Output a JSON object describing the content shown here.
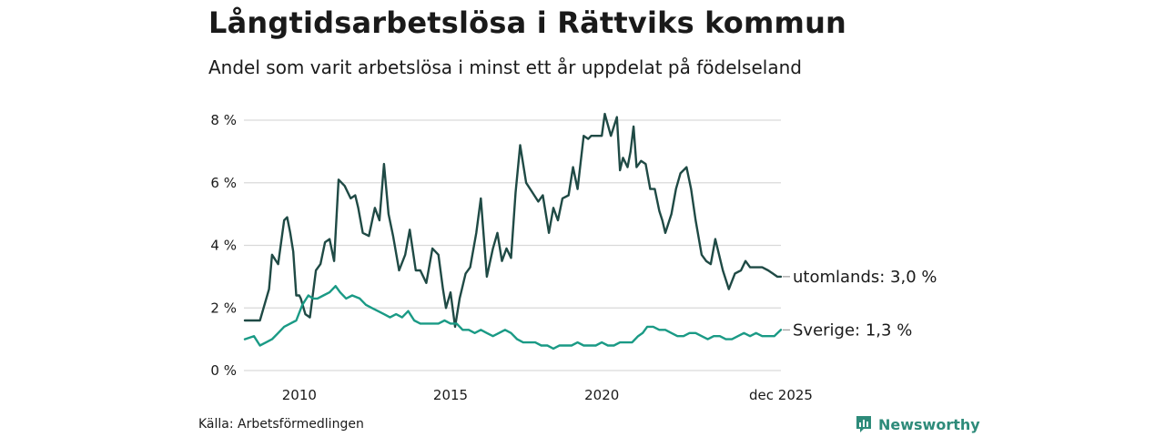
{
  "header": {
    "title": "Långtidsarbetslösa i Rättviks kommun",
    "subtitle": "Andel som varit arbetslösa i minst ett år uppdelat på födelseland"
  },
  "footer": {
    "source": "Källa: Arbetsförmedlingen",
    "brand": "Newsworthy"
  },
  "colors": {
    "utomlands": "#1f4a45",
    "sverige": "#1a9a85",
    "grid": "#d9d9d9"
  },
  "chart_data": {
    "type": "line",
    "title": "Långtidsarbetslösa i Rättviks kommun",
    "xlabel": "",
    "ylabel": "",
    "ylim": [
      0,
      8
    ],
    "xlim": [
      2008.17,
      2025.92
    ],
    "yticks": [
      0,
      2,
      4,
      6,
      8
    ],
    "ytick_labels": [
      "0 %",
      "2 %",
      "4 %",
      "6 %",
      "8 %"
    ],
    "xticks": [
      2010,
      2015,
      2020,
      2025.92
    ],
    "xtick_labels": [
      "2010",
      "2015",
      "2020",
      "dec 2025"
    ],
    "grid": true,
    "series": [
      {
        "name": "utomlands",
        "end_label": "utomlands: 3,0 %",
        "x": [
          2008.2,
          2008.5,
          2008.7,
          2009.0,
          2009.1,
          2009.3,
          2009.5,
          2009.6,
          2009.7,
          2009.8,
          2009.9,
          2010.0,
          2010.05,
          2010.2,
          2010.35,
          2010.55,
          2010.7,
          2010.85,
          2011.0,
          2011.15,
          2011.3,
          2011.5,
          2011.7,
          2011.85,
          2011.95,
          2012.1,
          2012.3,
          2012.5,
          2012.65,
          2012.8,
          2012.95,
          2013.1,
          2013.3,
          2013.5,
          2013.65,
          2013.85,
          2014.0,
          2014.2,
          2014.4,
          2014.6,
          2014.75,
          2014.85,
          2015.0,
          2015.15,
          2015.3,
          2015.5,
          2015.65,
          2015.85,
          2016.0,
          2016.2,
          2016.4,
          2016.55,
          2016.7,
          2016.85,
          2017.0,
          2017.15,
          2017.3,
          2017.5,
          2017.7,
          2017.9,
          2018.05,
          2018.25,
          2018.4,
          2018.55,
          2018.7,
          2018.9,
          2019.05,
          2019.2,
          2019.4,
          2019.55,
          2019.65,
          2019.85,
          2020.0,
          2020.1,
          2020.3,
          2020.5,
          2020.6,
          2020.7,
          2020.85,
          2020.95,
          2021.05,
          2021.15,
          2021.3,
          2021.45,
          2021.6,
          2021.75,
          2021.9,
          2022.0,
          2022.1,
          2022.3,
          2022.45,
          2022.6,
          2022.8,
          2022.95,
          2023.1,
          2023.3,
          2023.45,
          2023.6,
          2023.75,
          2023.9,
          2024.0,
          2024.2,
          2024.4,
          2024.6,
          2024.75,
          2024.9,
          2025.1,
          2025.3,
          2025.5,
          2025.65,
          2025.8,
          2025.92
        ],
        "values": [
          1.6,
          1.6,
          1.6,
          2.6,
          3.7,
          3.4,
          4.8,
          4.9,
          4.4,
          3.8,
          2.4,
          2.4,
          2.3,
          1.8,
          1.7,
          3.2,
          3.4,
          4.1,
          4.2,
          3.5,
          6.1,
          5.9,
          5.5,
          5.6,
          5.2,
          4.4,
          4.3,
          5.2,
          4.8,
          6.6,
          5.0,
          4.3,
          3.2,
          3.7,
          4.5,
          3.2,
          3.2,
          2.8,
          3.9,
          3.7,
          2.6,
          2.0,
          2.5,
          1.4,
          2.3,
          3.1,
          3.3,
          4.4,
          5.5,
          3.0,
          3.9,
          4.4,
          3.5,
          3.9,
          3.6,
          5.7,
          7.2,
          6.0,
          5.7,
          5.4,
          5.6,
          4.4,
          5.2,
          4.8,
          5.5,
          5.6,
          6.5,
          5.8,
          7.5,
          7.4,
          7.5,
          7.5,
          7.5,
          8.2,
          7.5,
          8.1,
          6.4,
          6.8,
          6.5,
          7.0,
          7.8,
          6.5,
          6.7,
          6.6,
          5.8,
          5.8,
          5.1,
          4.8,
          4.4,
          5.0,
          5.8,
          6.3,
          6.5,
          5.8,
          4.8,
          3.7,
          3.5,
          3.4,
          4.2,
          3.6,
          3.2,
          2.6,
          3.1,
          3.2,
          3.5,
          3.3,
          3.3,
          3.3,
          3.2,
          3.1,
          3.0,
          3.0
        ]
      },
      {
        "name": "Sverige",
        "end_label": "Sverige: 1,3 %",
        "x": [
          2008.2,
          2008.5,
          2008.7,
          2008.9,
          2009.1,
          2009.3,
          2009.5,
          2009.7,
          2009.9,
          2010.1,
          2010.3,
          2010.45,
          2010.6,
          2010.8,
          2011.0,
          2011.2,
          2011.35,
          2011.55,
          2011.75,
          2012.0,
          2012.2,
          2012.4,
          2012.6,
          2012.8,
          2013.0,
          2013.2,
          2013.4,
          2013.6,
          2013.8,
          2014.0,
          2014.2,
          2014.4,
          2014.6,
          2014.8,
          2015.0,
          2015.2,
          2015.4,
          2015.6,
          2015.8,
          2016.0,
          2016.2,
          2016.4,
          2016.6,
          2016.8,
          2017.0,
          2017.2,
          2017.4,
          2017.6,
          2017.8,
          2018.0,
          2018.2,
          2018.4,
          2018.6,
          2018.8,
          2019.0,
          2019.2,
          2019.4,
          2019.6,
          2019.8,
          2020.0,
          2020.2,
          2020.4,
          2020.6,
          2020.8,
          2021.0,
          2021.2,
          2021.35,
          2021.5,
          2021.7,
          2021.9,
          2022.1,
          2022.3,
          2022.5,
          2022.7,
          2022.9,
          2023.1,
          2023.3,
          2023.5,
          2023.7,
          2023.9,
          2024.1,
          2024.3,
          2024.5,
          2024.7,
          2024.9,
          2025.1,
          2025.3,
          2025.5,
          2025.7,
          2025.92
        ],
        "values": [
          1.0,
          1.1,
          0.8,
          0.9,
          1.0,
          1.2,
          1.4,
          1.5,
          1.6,
          2.1,
          2.4,
          2.3,
          2.3,
          2.4,
          2.5,
          2.7,
          2.5,
          2.3,
          2.4,
          2.3,
          2.1,
          2.0,
          1.9,
          1.8,
          1.7,
          1.8,
          1.7,
          1.9,
          1.6,
          1.5,
          1.5,
          1.5,
          1.5,
          1.6,
          1.5,
          1.5,
          1.3,
          1.3,
          1.2,
          1.3,
          1.2,
          1.1,
          1.2,
          1.3,
          1.2,
          1.0,
          0.9,
          0.9,
          0.9,
          0.8,
          0.8,
          0.7,
          0.8,
          0.8,
          0.8,
          0.9,
          0.8,
          0.8,
          0.8,
          0.9,
          0.8,
          0.8,
          0.9,
          0.9,
          0.9,
          1.1,
          1.2,
          1.4,
          1.4,
          1.3,
          1.3,
          1.2,
          1.1,
          1.1,
          1.2,
          1.2,
          1.1,
          1.0,
          1.1,
          1.1,
          1.0,
          1.0,
          1.1,
          1.2,
          1.1,
          1.2,
          1.1,
          1.1,
          1.1,
          1.3
        ]
      }
    ]
  }
}
